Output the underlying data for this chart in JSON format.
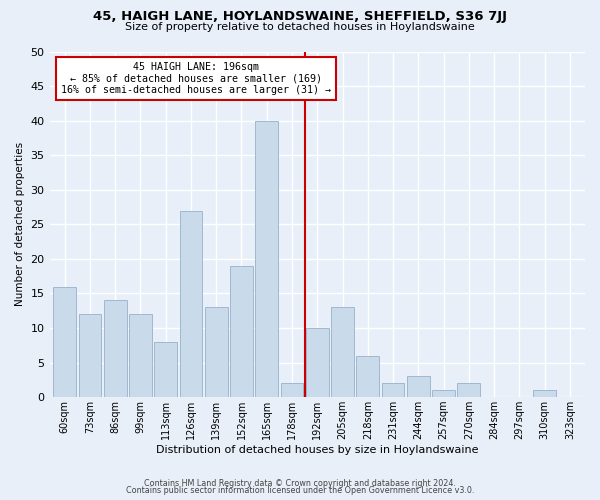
{
  "title": "45, HAIGH LANE, HOYLANDSWAINE, SHEFFIELD, S36 7JJ",
  "subtitle": "Size of property relative to detached houses in Hoylandswaine",
  "xlabel": "Distribution of detached houses by size in Hoylandswaine",
  "ylabel": "Number of detached properties",
  "footer_line1": "Contains HM Land Registry data © Crown copyright and database right 2024.",
  "footer_line2": "Contains public sector information licensed under the Open Government Licence v3.0.",
  "categories": [
    "60sqm",
    "73sqm",
    "86sqm",
    "99sqm",
    "113sqm",
    "126sqm",
    "139sqm",
    "152sqm",
    "165sqm",
    "178sqm",
    "192sqm",
    "205sqm",
    "218sqm",
    "231sqm",
    "244sqm",
    "257sqm",
    "270sqm",
    "284sqm",
    "297sqm",
    "310sqm",
    "323sqm"
  ],
  "values": [
    16,
    12,
    14,
    12,
    8,
    27,
    13,
    19,
    40,
    2,
    10,
    13,
    6,
    2,
    3,
    1,
    2,
    0,
    0,
    1,
    0
  ],
  "bar_color": "#c9daea",
  "bar_edge_color": "#a0b8d0",
  "background_color": "#e8eff8",
  "grid_color": "#ffffff",
  "annotation_text": "45 HAIGH LANE: 196sqm\n← 85% of detached houses are smaller (169)\n16% of semi-detached houses are larger (31) →",
  "vline_color": "#cc0000",
  "annotation_box_color": "#cc0000",
  "ylim": [
    0,
    50
  ],
  "yticks": [
    0,
    5,
    10,
    15,
    20,
    25,
    30,
    35,
    40,
    45,
    50
  ]
}
